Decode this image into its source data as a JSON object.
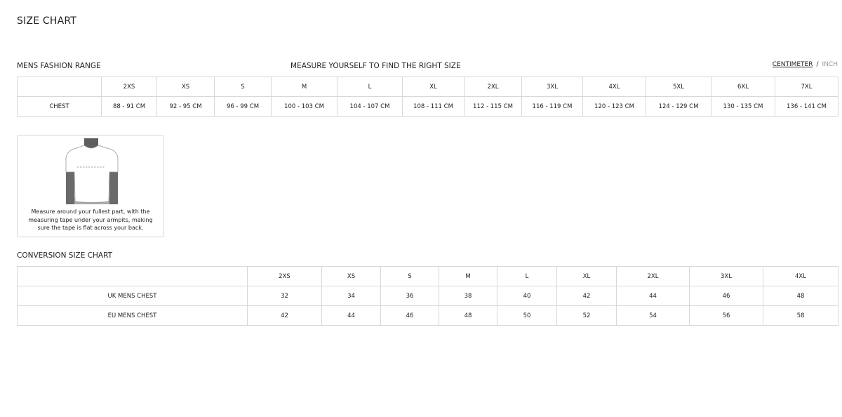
{
  "title": "SIZE CHART",
  "range_title": "MENS FASHION RANGE",
  "measure_title": "MEASURE YOURSELF TO FIND THE RIGHT SIZE",
  "units": {
    "centimeter": "CENTIMETER",
    "separator": "/",
    "inch": "INCH",
    "selected": "CENTIMETER"
  },
  "size_table": {
    "sizes": [
      "2XS",
      "XS",
      "S",
      "M",
      "L",
      "XL",
      "2XL",
      "3XL",
      "4XL",
      "5XL",
      "6XL",
      "7XL"
    ],
    "row_label": "CHEST",
    "values": [
      "88 - 91 CM",
      "92 - 95 CM",
      "96 - 99 CM",
      "100 - 103 CM",
      "104 - 107 CM",
      "108 - 111 CM",
      "112 - 115 CM",
      "116 - 119 CM",
      "120 - 123 CM",
      "124 - 129 CM",
      "130 - 135 CM",
      "136 - 141 CM"
    ]
  },
  "measure_instructions": "Measure around your fullest part, with the measuring tape under your armpits, making sure the tape is flat across your back.",
  "conversion_title": "CONVERSION SIZE CHART",
  "conversion_table": {
    "sizes": [
      "2XS",
      "XS",
      "S",
      "M",
      "L",
      "XL",
      "2XL",
      "3XL",
      "4XL"
    ],
    "rows": [
      {
        "label": "UK MENS CHEST",
        "values": [
          "32",
          "34",
          "36",
          "38",
          "40",
          "42",
          "44",
          "46",
          "48"
        ]
      },
      {
        "label": "EU MENS CHEST",
        "values": [
          "42",
          "44",
          "46",
          "48",
          "50",
          "52",
          "54",
          "56",
          "58"
        ]
      }
    ]
  }
}
